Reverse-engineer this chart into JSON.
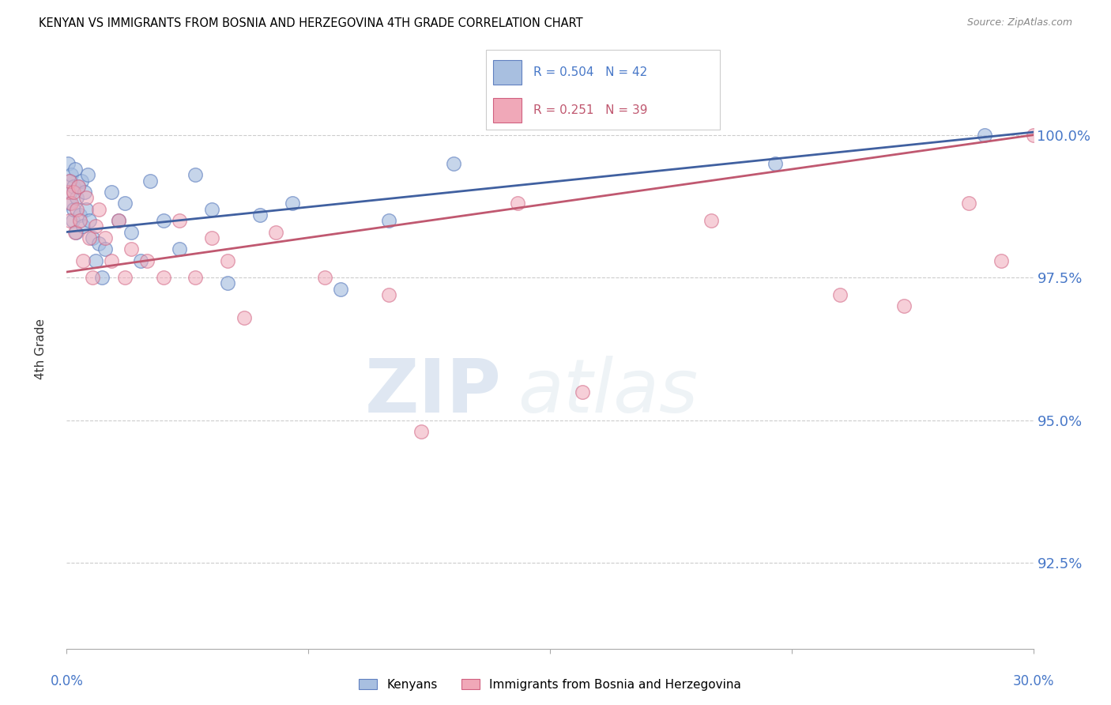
{
  "title": "KENYAN VS IMMIGRANTS FROM BOSNIA AND HERZEGOVINA 4TH GRADE CORRELATION CHART",
  "source": "Source: ZipAtlas.com",
  "ylabel": "4th Grade",
  "xlim": [
    0.0,
    30.0
  ],
  "ylim": [
    91.0,
    101.5
  ],
  "yticks": [
    92.5,
    95.0,
    97.5,
    100.0
  ],
  "ytick_labels": [
    "92.5%",
    "95.0%",
    "97.5%",
    "100.0%"
  ],
  "blue_R": 0.504,
  "blue_N": 42,
  "pink_R": 0.251,
  "pink_N": 39,
  "blue_color": "#A8BFE0",
  "pink_color": "#F0A8B8",
  "blue_edge_color": "#6080C0",
  "pink_edge_color": "#D06080",
  "blue_line_color": "#4060A0",
  "pink_line_color": "#C05870",
  "axis_label_color": "#4878C8",
  "grid_color": "#CCCCCC",
  "blue_x": [
    0.05,
    0.08,
    0.1,
    0.12,
    0.15,
    0.18,
    0.2,
    0.22,
    0.25,
    0.28,
    0.3,
    0.35,
    0.4,
    0.45,
    0.5,
    0.55,
    0.6,
    0.65,
    0.7,
    0.8,
    0.9,
    1.0,
    1.1,
    1.2,
    1.4,
    1.6,
    1.8,
    2.0,
    2.3,
    2.6,
    3.0,
    3.5,
    4.0,
    4.5,
    5.0,
    6.0,
    7.0,
    8.5,
    10.0,
    12.0,
    22.0,
    28.5
  ],
  "blue_y": [
    99.5,
    99.2,
    98.8,
    99.0,
    99.3,
    98.5,
    99.1,
    98.7,
    99.4,
    98.3,
    98.9,
    99.1,
    98.6,
    99.2,
    98.4,
    99.0,
    98.7,
    99.3,
    98.5,
    98.2,
    97.8,
    98.1,
    97.5,
    98.0,
    99.0,
    98.5,
    98.8,
    98.3,
    97.8,
    99.2,
    98.5,
    98.0,
    99.3,
    98.7,
    97.4,
    98.6,
    98.8,
    97.3,
    98.5,
    99.5,
    99.5,
    100.0
  ],
  "pink_x": [
    0.05,
    0.08,
    0.1,
    0.15,
    0.2,
    0.25,
    0.3,
    0.35,
    0.4,
    0.5,
    0.6,
    0.7,
    0.8,
    0.9,
    1.0,
    1.2,
    1.4,
    1.6,
    1.8,
    2.0,
    2.5,
    3.0,
    3.5,
    4.0,
    4.5,
    5.0,
    5.5,
    6.5,
    8.0,
    10.0,
    11.0,
    14.0,
    16.0,
    20.0,
    24.0,
    26.0,
    28.0,
    29.0,
    30.0
  ],
  "pink_y": [
    99.0,
    98.5,
    99.2,
    98.8,
    99.0,
    98.3,
    98.7,
    99.1,
    98.5,
    97.8,
    98.9,
    98.2,
    97.5,
    98.4,
    98.7,
    98.2,
    97.8,
    98.5,
    97.5,
    98.0,
    97.8,
    97.5,
    98.5,
    97.5,
    98.2,
    97.8,
    96.8,
    98.3,
    97.5,
    97.2,
    94.8,
    98.8,
    95.5,
    98.5,
    97.2,
    97.0,
    98.8,
    97.8,
    100.0
  ],
  "blue_line_x0": 0.0,
  "blue_line_y0": 98.3,
  "blue_line_x1": 30.0,
  "blue_line_y1": 100.05,
  "pink_line_x0": 0.0,
  "pink_line_y0": 97.6,
  "pink_line_x1": 30.0,
  "pink_line_y1": 100.0
}
